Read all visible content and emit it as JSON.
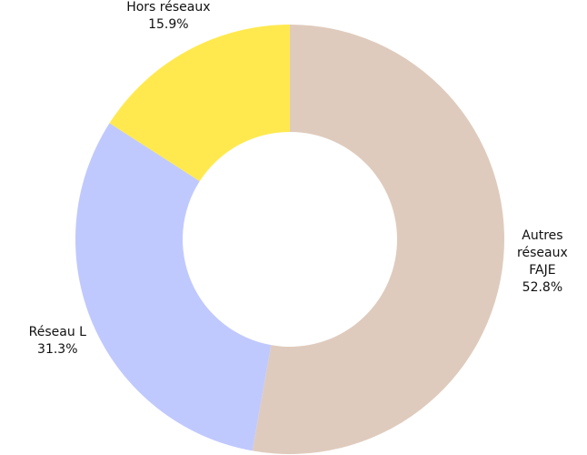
{
  "chart_data": {
    "type": "pie",
    "categories": [
      "Autres réseaux FAJE",
      "Réseau L",
      "Hors réseaux"
    ],
    "values": [
      52.8,
      31.3,
      15.9
    ],
    "value_labels": [
      "52.8%",
      "31.3%",
      "15.9%"
    ],
    "colors": [
      "#dfcbbd",
      "#c0c9fe",
      "#ffe94f"
    ]
  }
}
